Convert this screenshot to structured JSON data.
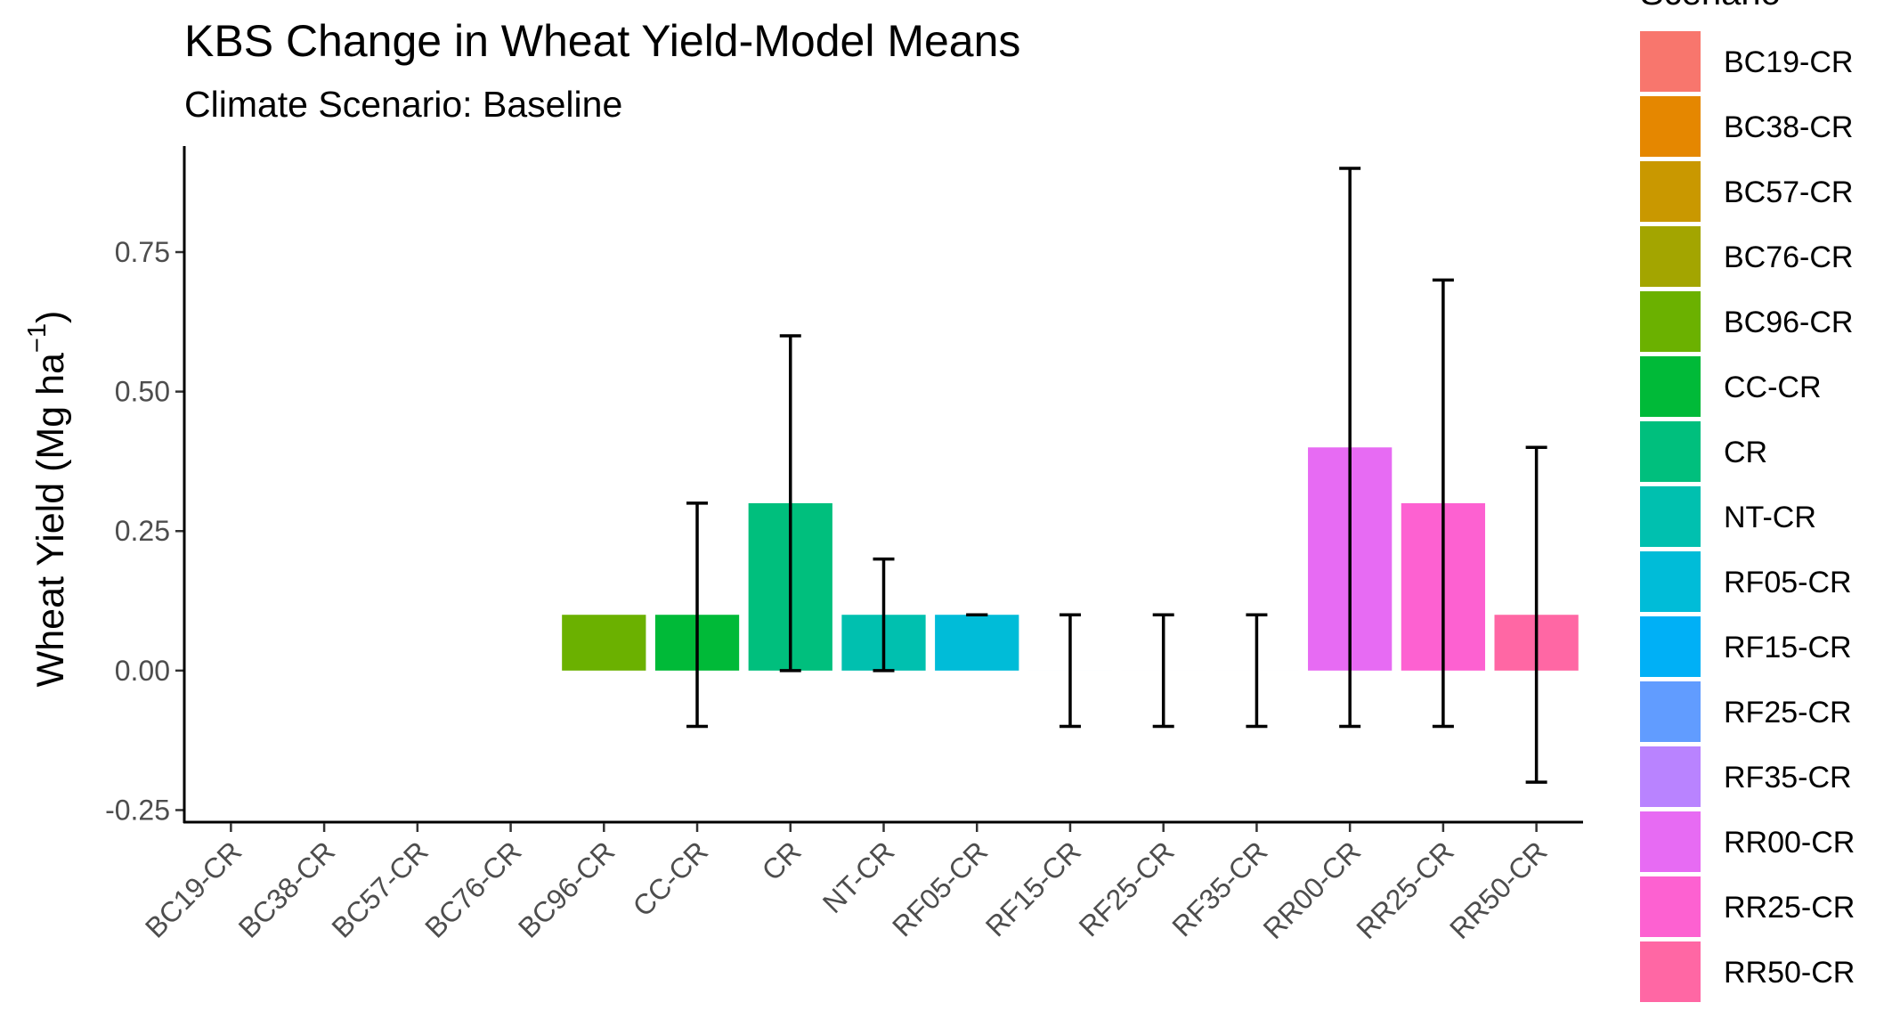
{
  "chart_data": {
    "type": "bar",
    "title": "KBS Change in Wheat Yield-Model Means",
    "subtitle": "Climate Scenario: Baseline",
    "xlabel": "",
    "ylabel": "Wheat Yield (Mg ha",
    "ylabel_superscript": "−1",
    "ylabel_close": ")",
    "ylim": [
      -0.27,
      0.94
    ],
    "yticks": [
      -0.25,
      0,
      0.25,
      0.5,
      0.75
    ],
    "ytick_labels": [
      "-0.25",
      "0.00",
      "0.25",
      "0.50",
      "0.75"
    ],
    "categories": [
      "BC19-CR",
      "BC38-CR",
      "BC57-CR",
      "BC76-CR",
      "BC96-CR",
      "CC-CR",
      "CR",
      "NT-CR",
      "RF05-CR",
      "RF15-CR",
      "RF25-CR",
      "RF35-CR",
      "RR00-CR",
      "RR25-CR",
      "RR50-CR"
    ],
    "values": [
      null,
      null,
      null,
      null,
      0.1,
      0.1,
      0.3,
      0.1,
      0.1,
      0.0,
      0.0,
      0.0,
      0.4,
      0.3,
      0.1
    ],
    "error_low": [
      null,
      null,
      null,
      null,
      null,
      -0.1,
      0.0,
      0.0,
      0.1,
      -0.1,
      -0.1,
      -0.1,
      -0.1,
      -0.1,
      -0.2
    ],
    "error_high": [
      null,
      null,
      null,
      null,
      null,
      0.3,
      0.6,
      0.2,
      0.1,
      0.1,
      0.1,
      0.1,
      0.9,
      0.7,
      0.4
    ],
    "colors": [
      "#F8766D",
      "#E58700",
      "#C99800",
      "#A3A500",
      "#6BB100",
      "#00BA38",
      "#00BF7D",
      "#00C0AF",
      "#00BCD8",
      "#00B0F6",
      "#619CFF",
      "#B983FF",
      "#E76BF3",
      "#FD61D1",
      "#FF67A4"
    ],
    "legend": {
      "title": "Scenario",
      "position": "right",
      "entries": [
        "BC19-CR",
        "BC38-CR",
        "BC57-CR",
        "BC76-CR",
        "BC96-CR",
        "CC-CR",
        "CR",
        "NT-CR",
        "RF05-CR",
        "RF15-CR",
        "RF25-CR",
        "RF35-CR",
        "RR00-CR",
        "RR25-CR",
        "RR50-CR"
      ]
    }
  }
}
